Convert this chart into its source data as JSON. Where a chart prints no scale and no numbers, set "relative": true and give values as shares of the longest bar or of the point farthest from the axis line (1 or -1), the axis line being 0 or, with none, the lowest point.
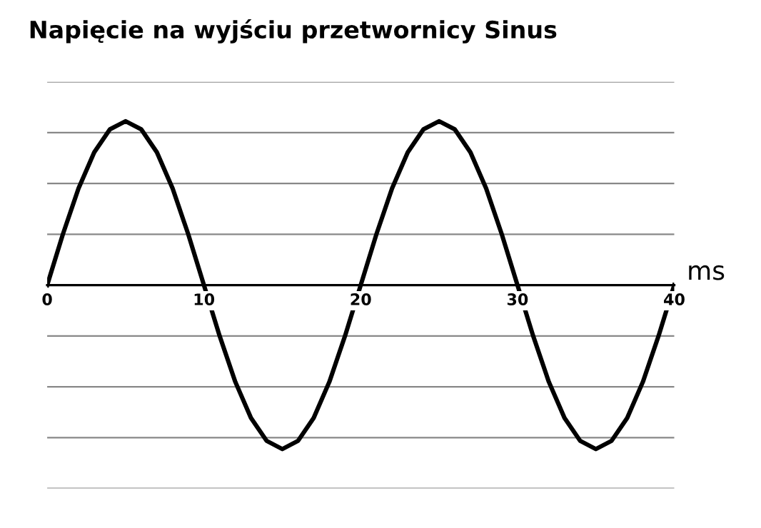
{
  "chart_data": {
    "type": "line",
    "title": "Napięcie na wyjściu przetwornicy Sinus",
    "xlabel": "ms",
    "relative": true,
    "x": [
      0,
      1,
      2,
      3,
      4,
      5,
      6,
      7,
      8,
      9,
      10,
      11,
      12,
      13,
      14,
      15,
      16,
      17,
      18,
      19,
      20,
      21,
      22,
      23,
      24,
      25,
      26,
      27,
      28,
      29,
      30,
      31,
      32,
      33,
      34,
      35,
      36,
      37,
      38,
      39,
      40
    ],
    "series": [
      {
        "color": "#000000",
        "values": [
          0,
          0.31,
          0.59,
          0.81,
          0.95,
          1,
          0.95,
          0.81,
          0.59,
          0.31,
          0,
          -0.31,
          -0.59,
          -0.81,
          -0.95,
          -1,
          -0.95,
          -0.81,
          -0.59,
          -0.31,
          0,
          0.31,
          0.59,
          0.81,
          0.95,
          1,
          0.95,
          0.81,
          0.59,
          0.31,
          0,
          -0.31,
          -0.59,
          -0.81,
          -0.95,
          -1,
          -0.95,
          -0.81,
          -0.59,
          -0.31,
          0
        ]
      }
    ],
    "xlim": [
      0,
      40
    ],
    "xticks": [
      0,
      10,
      20,
      30,
      40
    ],
    "grid": "y",
    "legend": false,
    "marker": "none",
    "line_style": "solid"
  }
}
